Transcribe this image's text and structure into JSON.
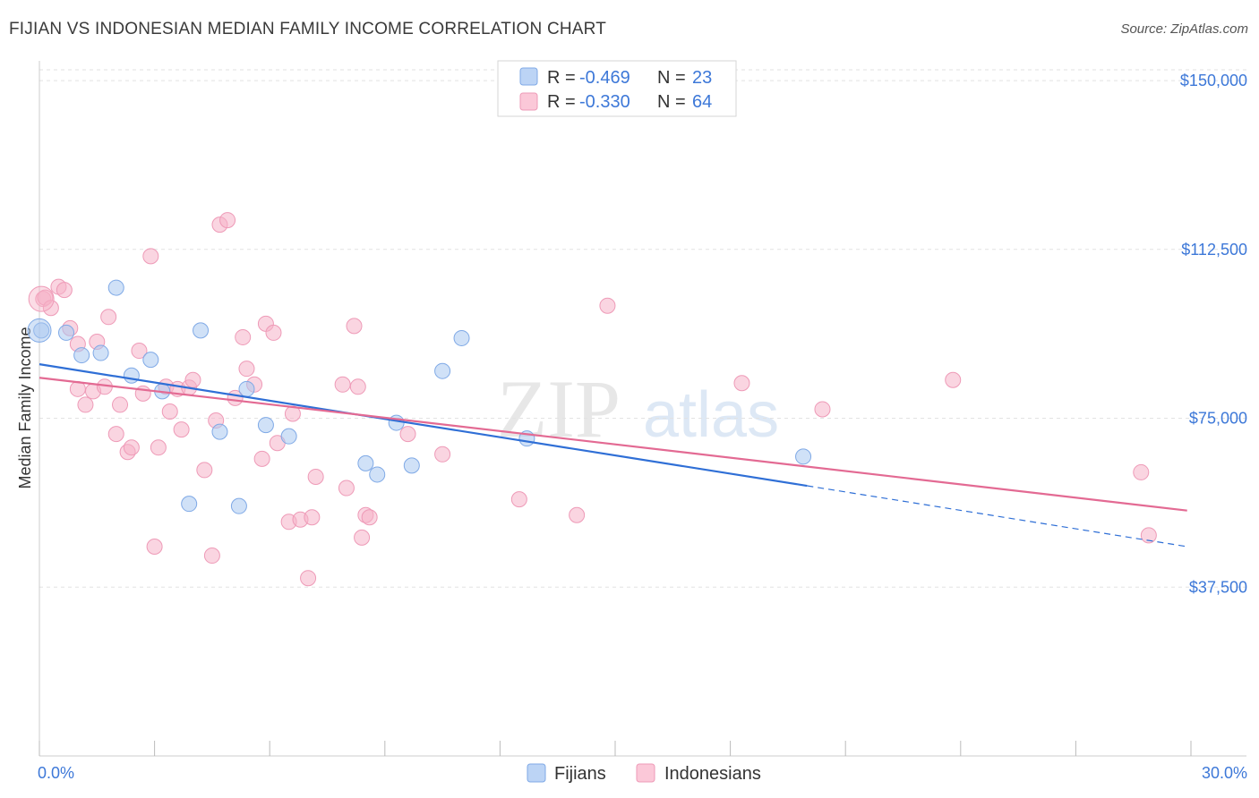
{
  "title": "FIJIAN VS INDONESIAN MEDIAN FAMILY INCOME CORRELATION CHART",
  "source": "Source: ZipAtlas.com",
  "watermark": {
    "zip": "ZIP",
    "atlas": "atlas"
  },
  "legend": {
    "rows": [
      {
        "r_label": "R = ",
        "r_value": "-0.469",
        "n_label": "N = ",
        "n_value": "23",
        "color": "#a9c8f0"
      },
      {
        "r_label": "R = ",
        "r_value": "-0.330",
        "n_label": "N = ",
        "n_value": "64",
        "color": "#f6b3c8"
      }
    ]
  },
  "bottom_legend": {
    "fijians": "Fijians",
    "indonesians": "Indonesians"
  },
  "chart_data": {
    "type": "scatter",
    "xlabel": "",
    "ylabel": "Median Family Income",
    "xlim": [
      0,
      30
    ],
    "ylim": [
      0,
      152000
    ],
    "x_tick_labels": [
      "0.0%",
      "30.0%"
    ],
    "y_ticks": [
      37500,
      75000,
      112500,
      150000
    ],
    "y_tick_labels": [
      "$37,500",
      "$75,000",
      "$112,500",
      "$150,000"
    ],
    "grid": true,
    "colors": {
      "fijians": "#a9c8f0",
      "fijians_line": "#2f6fd6",
      "indonesians": "#f6b3c8",
      "indonesians_line": "#e36a93"
    },
    "series": [
      {
        "name": "Fijians",
        "points": [
          [
            0.05,
            94500
          ],
          [
            0.7,
            94000
          ],
          [
            1.1,
            89000
          ],
          [
            1.6,
            89500
          ],
          [
            2.0,
            104000
          ],
          [
            2.4,
            84500
          ],
          [
            2.9,
            88000
          ],
          [
            3.2,
            81000
          ],
          [
            3.9,
            56000
          ],
          [
            4.2,
            94500
          ],
          [
            4.7,
            72000
          ],
          [
            5.2,
            55500
          ],
          [
            5.4,
            81500
          ],
          [
            5.9,
            73500
          ],
          [
            6.5,
            71000
          ],
          [
            8.5,
            65000
          ],
          [
            8.8,
            62500
          ],
          [
            9.3,
            74000
          ],
          [
            9.7,
            64500
          ],
          [
            10.5,
            85500
          ],
          [
            11.0,
            92800
          ],
          [
            12.7,
            70500
          ],
          [
            19.9,
            66500
          ]
        ],
        "trend": {
          "x_start": 0,
          "y_start": 87000,
          "x_solid_end": 20.0,
          "y_solid_end": 60000,
          "x_end": 29.9,
          "y_end": 46500
        }
      },
      {
        "name": "Indonesians",
        "points": [
          [
            0.1,
            101500
          ],
          [
            0.15,
            101800
          ],
          [
            0.3,
            99500
          ],
          [
            0.5,
            104200
          ],
          [
            0.65,
            103500
          ],
          [
            0.8,
            95000
          ],
          [
            1.0,
            91500
          ],
          [
            1.0,
            81500
          ],
          [
            1.2,
            78000
          ],
          [
            1.4,
            81000
          ],
          [
            1.5,
            92000
          ],
          [
            1.7,
            82000
          ],
          [
            1.8,
            97500
          ],
          [
            2.0,
            71500
          ],
          [
            2.1,
            78000
          ],
          [
            2.3,
            67500
          ],
          [
            2.4,
            68500
          ],
          [
            2.6,
            90000
          ],
          [
            2.7,
            80500
          ],
          [
            2.9,
            111000
          ],
          [
            3.0,
            46500
          ],
          [
            3.1,
            68500
          ],
          [
            3.3,
            82000
          ],
          [
            3.4,
            76500
          ],
          [
            3.6,
            81500
          ],
          [
            3.7,
            72500
          ],
          [
            3.9,
            81800
          ],
          [
            4.0,
            83500
          ],
          [
            4.3,
            63500
          ],
          [
            4.5,
            44500
          ],
          [
            4.6,
            74500
          ],
          [
            4.7,
            118000
          ],
          [
            4.9,
            119000
          ],
          [
            5.1,
            79500
          ],
          [
            5.3,
            93000
          ],
          [
            5.4,
            86000
          ],
          [
            5.6,
            82500
          ],
          [
            5.8,
            66000
          ],
          [
            5.9,
            96000
          ],
          [
            6.1,
            94000
          ],
          [
            6.2,
            69500
          ],
          [
            6.5,
            52000
          ],
          [
            6.6,
            76000
          ],
          [
            6.8,
            52500
          ],
          [
            7.0,
            39500
          ],
          [
            7.1,
            53000
          ],
          [
            7.2,
            62000
          ],
          [
            7.9,
            82500
          ],
          [
            8.0,
            59500
          ],
          [
            8.2,
            95500
          ],
          [
            8.3,
            82000
          ],
          [
            8.4,
            48500
          ],
          [
            8.5,
            53500
          ],
          [
            8.6,
            53000
          ],
          [
            9.6,
            71500
          ],
          [
            10.5,
            67000
          ],
          [
            12.5,
            57000
          ],
          [
            14.0,
            53500
          ],
          [
            14.8,
            100000
          ],
          [
            18.3,
            82800
          ],
          [
            20.4,
            77000
          ],
          [
            23.8,
            83500
          ],
          [
            28.7,
            63000
          ],
          [
            28.9,
            49000
          ]
        ],
        "trend": {
          "x_start": 0,
          "y_start": 84000,
          "x_end": 29.9,
          "y_end": 54500
        }
      }
    ]
  }
}
